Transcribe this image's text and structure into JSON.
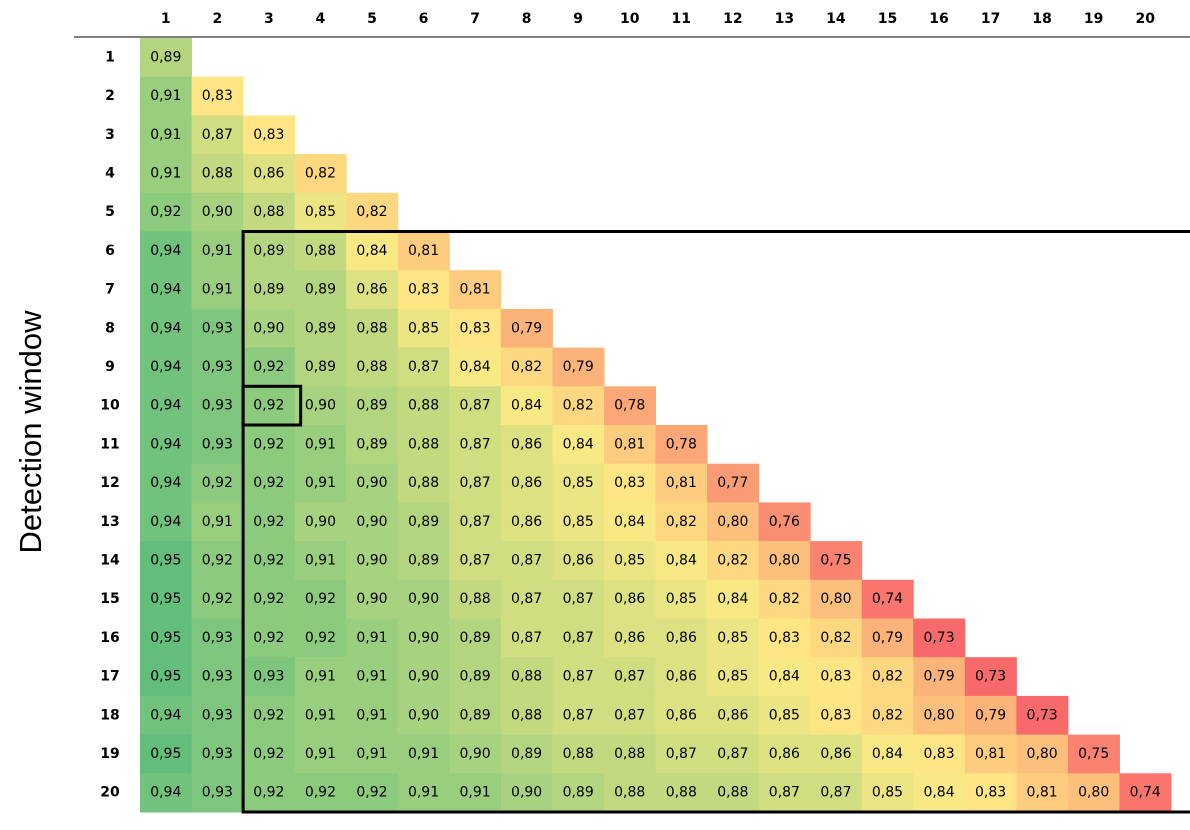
{
  "chart_data": {
    "type": "heatmap",
    "ylabel": "Detection window",
    "xlabel": "",
    "columns": [
      "1",
      "2",
      "3",
      "4",
      "5",
      "6",
      "7",
      "8",
      "9",
      "10",
      "11",
      "12",
      "13",
      "14",
      "15",
      "16",
      "17",
      "18",
      "19",
      "20"
    ],
    "rows": [
      "1",
      "2",
      "3",
      "4",
      "5",
      "6",
      "7",
      "8",
      "9",
      "10",
      "11",
      "12",
      "13",
      "14",
      "15",
      "16",
      "17",
      "18",
      "19",
      "20"
    ],
    "values": [
      [
        "0,89"
      ],
      [
        "0,91",
        "0,83"
      ],
      [
        "0,91",
        "0,87",
        "0,83"
      ],
      [
        "0,91",
        "0,88",
        "0,86",
        "0,82"
      ],
      [
        "0,92",
        "0,90",
        "0,88",
        "0,85",
        "0,82"
      ],
      [
        "0,94",
        "0,91",
        "0,89",
        "0,88",
        "0,84",
        "0,81"
      ],
      [
        "0,94",
        "0,91",
        "0,89",
        "0,89",
        "0,86",
        "0,83",
        "0,81"
      ],
      [
        "0,94",
        "0,93",
        "0,90",
        "0,89",
        "0,88",
        "0,85",
        "0,83",
        "0,79"
      ],
      [
        "0,94",
        "0,93",
        "0,92",
        "0,89",
        "0,88",
        "0,87",
        "0,84",
        "0,82",
        "0,79"
      ],
      [
        "0,94",
        "0,93",
        "0,92",
        "0,90",
        "0,89",
        "0,88",
        "0,87",
        "0,84",
        "0,82",
        "0,78"
      ],
      [
        "0,94",
        "0,93",
        "0,92",
        "0,91",
        "0,89",
        "0,88",
        "0,87",
        "0,86",
        "0,84",
        "0,81",
        "0,78"
      ],
      [
        "0,94",
        "0,92",
        "0,92",
        "0,91",
        "0,90",
        "0,88",
        "0,87",
        "0,86",
        "0,85",
        "0,83",
        "0,81",
        "0,77"
      ],
      [
        "0,94",
        "0,91",
        "0,92",
        "0,90",
        "0,90",
        "0,89",
        "0,87",
        "0,86",
        "0,85",
        "0,84",
        "0,82",
        "0,80",
        "0,76"
      ],
      [
        "0,95",
        "0,92",
        "0,92",
        "0,91",
        "0,90",
        "0,89",
        "0,87",
        "0,87",
        "0,86",
        "0,85",
        "0,84",
        "0,82",
        "0,80",
        "0,75"
      ],
      [
        "0,95",
        "0,92",
        "0,92",
        "0,92",
        "0,90",
        "0,90",
        "0,88",
        "0,87",
        "0,87",
        "0,86",
        "0,85",
        "0,84",
        "0,82",
        "0,80",
        "0,74"
      ],
      [
        "0,95",
        "0,93",
        "0,92",
        "0,92",
        "0,91",
        "0,90",
        "0,89",
        "0,87",
        "0,87",
        "0,86",
        "0,86",
        "0,85",
        "0,83",
        "0,82",
        "0,79",
        "0,73"
      ],
      [
        "0,95",
        "0,93",
        "0,93",
        "0,91",
        "0,91",
        "0,90",
        "0,89",
        "0,88",
        "0,87",
        "0,87",
        "0,86",
        "0,85",
        "0,84",
        "0,83",
        "0,82",
        "0,79",
        "0,73"
      ],
      [
        "0,94",
        "0,93",
        "0,92",
        "0,91",
        "0,91",
        "0,90",
        "0,89",
        "0,88",
        "0,87",
        "0,87",
        "0,86",
        "0,86",
        "0,85",
        "0,83",
        "0,82",
        "0,80",
        "0,79",
        "0,73"
      ],
      [
        "0,95",
        "0,93",
        "0,92",
        "0,91",
        "0,91",
        "0,91",
        "0,90",
        "0,89",
        "0,88",
        "0,88",
        "0,87",
        "0,87",
        "0,86",
        "0,86",
        "0,84",
        "0,83",
        "0,81",
        "0,80",
        "0,75"
      ],
      [
        "0,94",
        "0,93",
        "0,92",
        "0,92",
        "0,92",
        "0,91",
        "0,91",
        "0,90",
        "0,89",
        "0,88",
        "0,88",
        "0,88",
        "0,87",
        "0,87",
        "0,85",
        "0,84",
        "0,83",
        "0,81",
        "0,80",
        "0,74"
      ]
    ],
    "color_scale": {
      "low": "#f8696b",
      "mid": "#ffeb84",
      "high": "#63be7b",
      "min": 0.73,
      "mid_value": 0.835,
      "max": 0.95
    },
    "highlight_region": {
      "rows": [
        "6",
        "20"
      ],
      "columns": [
        "3",
        "20"
      ]
    },
    "highlight_cell": {
      "row": "10",
      "column": "3"
    }
  }
}
